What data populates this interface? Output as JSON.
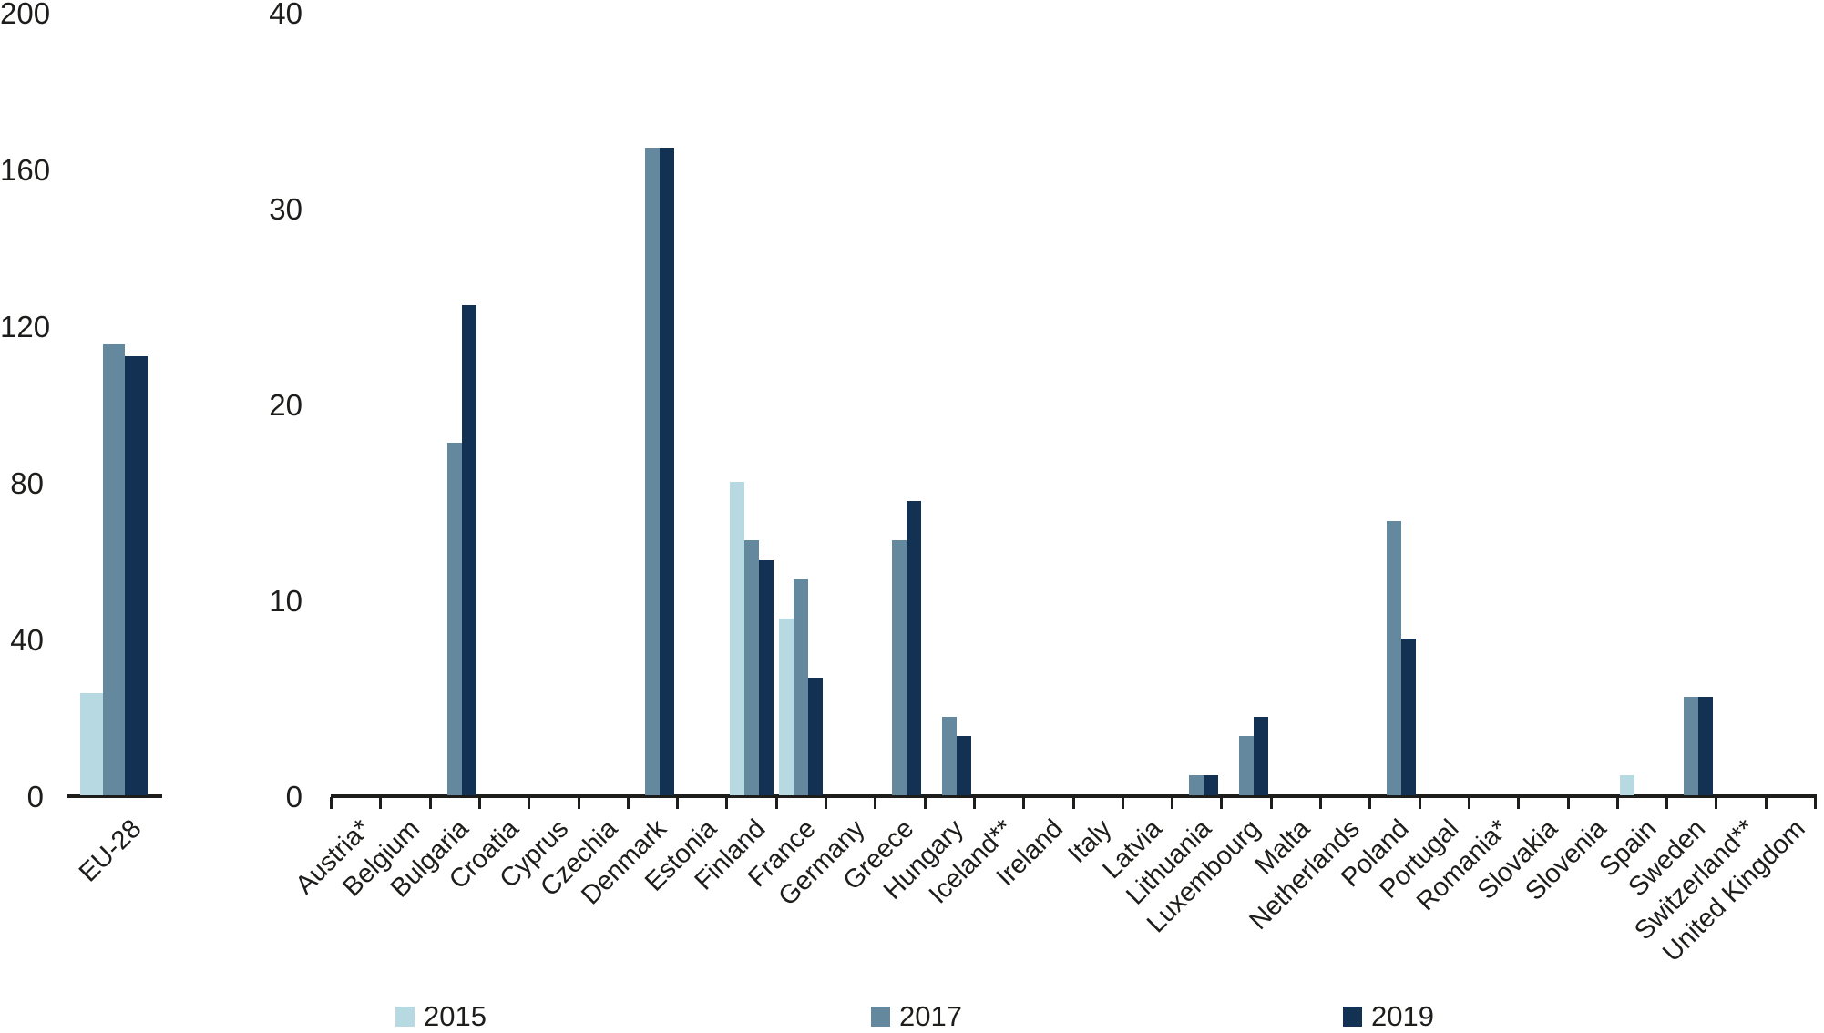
{
  "chart_data": {
    "type": "bar",
    "title": "",
    "series": [
      "2015",
      "2017",
      "2019"
    ],
    "colors": {
      "2015": "#b7d9e2",
      "2017": "#64889e",
      "2019": "#133253"
    },
    "text_color": "#1d1d1b",
    "grid": false,
    "legend_position": "bottom",
    "panels": [
      {
        "name": "eu28",
        "ylim": [
          0,
          200
        ],
        "yticks": [
          0,
          40,
          80,
          120,
          160,
          200
        ],
        "categories": [
          {
            "label": "EU-28",
            "values": {
              "2015": 26,
              "2017": 115,
              "2019": 112
            }
          }
        ]
      },
      {
        "name": "countries",
        "ylim": [
          0,
          40
        ],
        "yticks": [
          0,
          10,
          20,
          30,
          40
        ],
        "categories": [
          {
            "label": "Austria*",
            "values": {
              "2015": null,
              "2017": null,
              "2019": null
            }
          },
          {
            "label": "Belgium",
            "values": {
              "2015": null,
              "2017": null,
              "2019": null
            }
          },
          {
            "label": "Bulgaria",
            "values": {
              "2015": null,
              "2017": 18,
              "2019": 25
            }
          },
          {
            "label": "Croatia",
            "values": {
              "2015": null,
              "2017": null,
              "2019": null
            }
          },
          {
            "label": "Cyprus",
            "values": {
              "2015": null,
              "2017": null,
              "2019": null
            }
          },
          {
            "label": "Czechia",
            "values": {
              "2015": null,
              "2017": null,
              "2019": null
            }
          },
          {
            "label": "Denmark",
            "values": {
              "2015": null,
              "2017": 33,
              "2019": 33
            }
          },
          {
            "label": "Estonia",
            "values": {
              "2015": null,
              "2017": null,
              "2019": null
            }
          },
          {
            "label": "Finland",
            "values": {
              "2015": 16,
              "2017": 13,
              "2019": 12
            }
          },
          {
            "label": "France",
            "values": {
              "2015": 9,
              "2017": 11,
              "2019": 6
            }
          },
          {
            "label": "Germany",
            "values": {
              "2015": null,
              "2017": null,
              "2019": null
            }
          },
          {
            "label": "Greece",
            "values": {
              "2015": null,
              "2017": 13,
              "2019": 15
            }
          },
          {
            "label": "Hungary",
            "values": {
              "2015": null,
              "2017": 4,
              "2019": 3
            }
          },
          {
            "label": "Iceland**",
            "values": {
              "2015": null,
              "2017": null,
              "2019": null
            }
          },
          {
            "label": "Ireland",
            "values": {
              "2015": null,
              "2017": null,
              "2019": null
            }
          },
          {
            "label": "Italy",
            "values": {
              "2015": null,
              "2017": null,
              "2019": null
            }
          },
          {
            "label": "Latvia",
            "values": {
              "2015": null,
              "2017": null,
              "2019": null
            }
          },
          {
            "label": "Lithuania",
            "values": {
              "2015": null,
              "2017": 1,
              "2019": 1
            }
          },
          {
            "label": "Luxembourg",
            "values": {
              "2015": null,
              "2017": 3,
              "2019": 4
            }
          },
          {
            "label": "Malta",
            "values": {
              "2015": null,
              "2017": null,
              "2019": null
            }
          },
          {
            "label": "Netherlands",
            "values": {
              "2015": null,
              "2017": null,
              "2019": null
            }
          },
          {
            "label": "Poland",
            "values": {
              "2015": null,
              "2017": 14,
              "2019": 8
            }
          },
          {
            "label": "Portugal",
            "values": {
              "2015": null,
              "2017": null,
              "2019": null
            }
          },
          {
            "label": "Romania*",
            "values": {
              "2015": null,
              "2017": null,
              "2019": null
            }
          },
          {
            "label": "Slovakia",
            "values": {
              "2015": null,
              "2017": null,
              "2019": null
            }
          },
          {
            "label": "Slovenia",
            "values": {
              "2015": null,
              "2017": null,
              "2019": null
            }
          },
          {
            "label": "Spain",
            "values": {
              "2015": 1,
              "2017": null,
              "2019": null
            }
          },
          {
            "label": "Sweden",
            "values": {
              "2015": null,
              "2017": 5,
              "2019": 5
            }
          },
          {
            "label": "Switzerland**",
            "values": {
              "2015": null,
              "2017": null,
              "2019": null
            }
          },
          {
            "label": "United Kingdom",
            "values": {
              "2015": null,
              "2017": null,
              "2019": null
            }
          }
        ]
      }
    ],
    "legend": {
      "entries": [
        "2015",
        "2017",
        "2019"
      ]
    }
  }
}
